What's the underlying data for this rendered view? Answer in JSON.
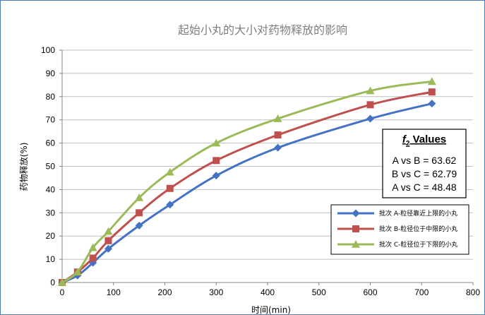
{
  "chart_data": {
    "type": "line",
    "title": "起始小丸的大小对药物释放的影响",
    "xlabel": "时间(min)",
    "ylabel": "药物释放(%)",
    "xlim": [
      0,
      800
    ],
    "ylim": [
      0,
      100
    ],
    "xticks": [
      0,
      100,
      200,
      300,
      400,
      500,
      600,
      700,
      800
    ],
    "yticks": [
      0,
      10,
      20,
      30,
      40,
      50,
      60,
      70,
      80,
      90,
      100
    ],
    "grid": "horizontal",
    "legend_position": "bottom-right",
    "series": [
      {
        "name": "批次 A-粒径靠近上限的小丸",
        "color": "#4472c4",
        "marker": "diamond",
        "x": [
          0,
          30,
          60,
          90,
          150,
          210,
          300,
          420,
          600,
          720
        ],
        "y": [
          0,
          3,
          8.5,
          14.5,
          24.5,
          33.5,
          46,
          58,
          70.5,
          77
        ]
      },
      {
        "name": "批次 B-粒径位于中限的小丸",
        "color": "#c0504d",
        "marker": "square",
        "x": [
          0,
          30,
          60,
          90,
          150,
          210,
          300,
          420,
          600,
          720
        ],
        "y": [
          0,
          4.5,
          10.5,
          18,
          30,
          40.5,
          52.5,
          63.5,
          76.5,
          82
        ]
      },
      {
        "name": "批次 C-粒径位于下限的小丸",
        "color": "#9bbb59",
        "marker": "triangle",
        "x": [
          0,
          30,
          60,
          90,
          150,
          210,
          300,
          420,
          600,
          720
        ],
        "y": [
          0,
          4.5,
          15,
          22,
          36.5,
          47.5,
          60,
          70.5,
          82.5,
          86.5
        ]
      }
    ],
    "annotation": {
      "title_main": "f",
      "title_sub": "2",
      "title_suffix": " Values",
      "lines": [
        "A vs B = 63.62",
        "B vs C = 62.79",
        "A vs C = 48.48"
      ]
    }
  }
}
